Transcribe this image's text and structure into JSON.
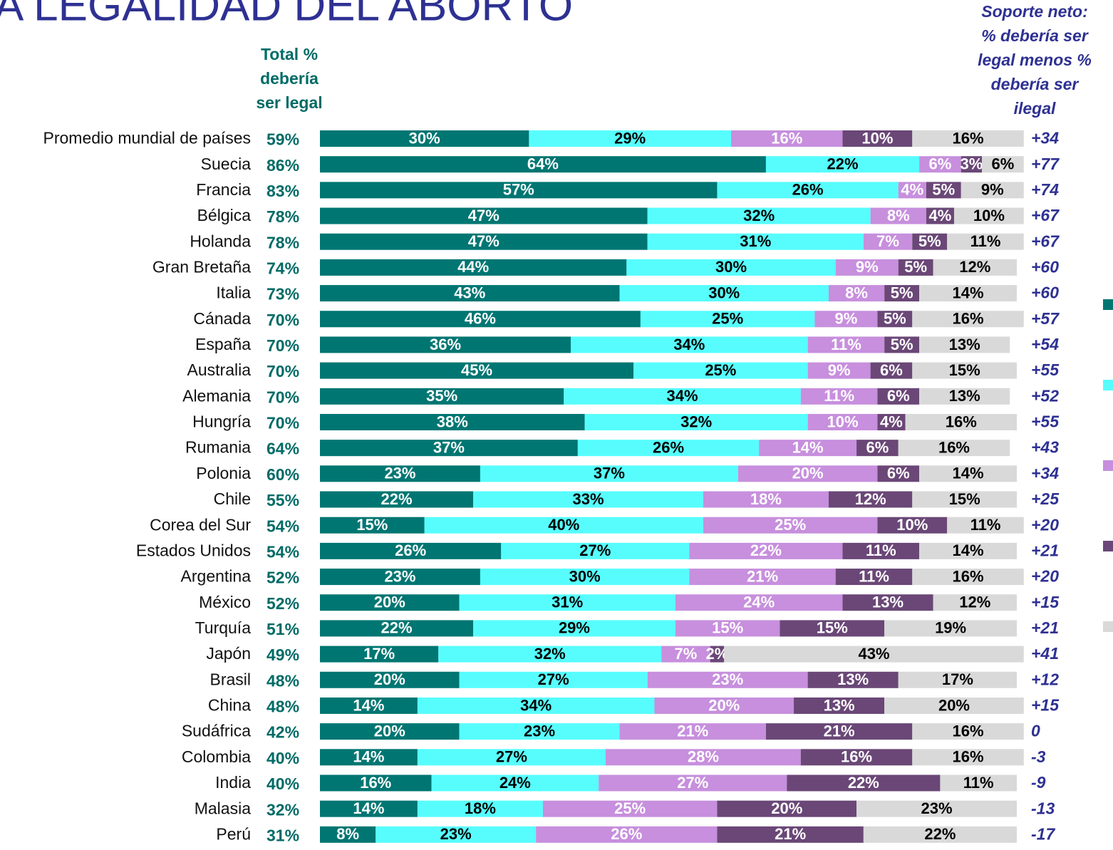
{
  "chart_data": {
    "type": "stacked-bar",
    "title": "A LEGALIDAD DEL ABORTO",
    "total_header": [
      "Total %",
      "debería",
      "ser legal"
    ],
    "net_header": [
      "Soporte neto:",
      "% debería ser",
      "legal menos %",
      "debería ser",
      "ilegal"
    ],
    "categories": [
      "Promedio mundial de países",
      "Suecia",
      "Francia",
      "Bélgica",
      "Holanda",
      "Gran Bretaña",
      "Italia",
      "Cánada",
      "España",
      "Australia",
      "Alemania",
      "Hungría",
      "Rumania",
      "Polonia",
      "Chile",
      "Corea del Sur",
      "Estados Unidos",
      "Argentina",
      "México",
      "Turquía",
      "Japón",
      "Brasil",
      "China",
      "Sudáfrica",
      "Colombia",
      "India",
      "Malasia",
      "Perú"
    ],
    "xlim": [
      0,
      100
    ],
    "totals": {
      "color": "#006b66",
      "values": [
        59,
        86,
        83,
        78,
        78,
        74,
        73,
        70,
        70,
        70,
        70,
        70,
        64,
        60,
        55,
        54,
        54,
        52,
        52,
        51,
        49,
        48,
        48,
        42,
        40,
        40,
        32,
        31
      ],
      "value_labels": [
        "59%",
        "86%",
        "83%",
        "78%",
        "78%",
        "74%",
        "73%",
        "70%",
        "70%",
        "70%",
        "70%",
        "70%",
        "64%",
        "60%",
        "55%",
        "54%",
        "54%",
        "52%",
        "52%",
        "51%",
        "49%",
        "48%",
        "48%",
        "42%",
        "40%",
        "40%",
        "32%",
        "31%"
      ]
    },
    "net": {
      "color": "#2e3192",
      "values": [
        34,
        77,
        74,
        67,
        67,
        60,
        60,
        57,
        54,
        55,
        52,
        55,
        43,
        34,
        25,
        20,
        21,
        20,
        15,
        21,
        41,
        12,
        15,
        0,
        -3,
        -9,
        -13,
        -17
      ],
      "value_labels": [
        "+34",
        "+77",
        "+74",
        "+67",
        "+67",
        "+60",
        "+60",
        "+57",
        "+54",
        "+55",
        "+52",
        "+55",
        "+43",
        "+34",
        "+25",
        "+20",
        "+21",
        "+20",
        "+15",
        "+21",
        "+41",
        "+12",
        "+15",
        "0",
        "-3",
        "-9",
        "-13",
        "-17"
      ]
    },
    "series": [
      {
        "color": "#007672",
        "text_color": "#ffffff",
        "values": [
          30,
          64,
          57,
          47,
          47,
          44,
          43,
          46,
          36,
          45,
          35,
          38,
          37,
          23,
          22,
          15,
          26,
          23,
          20,
          22,
          17,
          20,
          14,
          20,
          14,
          16,
          14,
          8
        ],
        "value_labels": [
          "30%",
          "64%",
          "57%",
          "47%",
          "47%",
          "44%",
          "43%",
          "46%",
          "36%",
          "45%",
          "35%",
          "38%",
          "37%",
          "23%",
          "22%",
          "15%",
          "26%",
          "23%",
          "20%",
          "22%",
          "17%",
          "20%",
          "14%",
          "20%",
          "14%",
          "16%",
          "14%",
          "8%"
        ]
      },
      {
        "color": "#57fdfd",
        "text_color": "#000000",
        "values": [
          29,
          22,
          26,
          32,
          31,
          30,
          30,
          25,
          34,
          25,
          34,
          32,
          26,
          37,
          33,
          40,
          27,
          30,
          31,
          29,
          32,
          27,
          34,
          23,
          27,
          24,
          18,
          23
        ],
        "value_labels": [
          "29%",
          "22%",
          "26%",
          "32%",
          "31%",
          "30%",
          "30%",
          "25%",
          "34%",
          "25%",
          "34%",
          "32%",
          "26%",
          "37%",
          "33%",
          "40%",
          "27%",
          "30%",
          "31%",
          "29%",
          "32%",
          "27%",
          "34%",
          "23%",
          "27%",
          "24%",
          "18%",
          "23%"
        ]
      },
      {
        "color": "#c78fdd",
        "text_color": "#ffffff",
        "values": [
          16,
          6,
          4,
          8,
          7,
          9,
          8,
          9,
          11,
          9,
          11,
          10,
          14,
          20,
          18,
          25,
          22,
          21,
          24,
          15,
          7,
          23,
          20,
          21,
          28,
          27,
          25,
          26
        ],
        "value_labels": [
          "16%",
          "6%",
          "4%",
          "8%",
          "7%",
          "9%",
          "8%",
          "9%",
          "11%",
          "9%",
          "11%",
          "10%",
          "14%",
          "20%",
          "18%",
          "25%",
          "22%",
          "21%",
          "24%",
          "15%",
          "7%",
          "23%",
          "20%",
          "21%",
          "28%",
          "27%",
          "25%",
          "26%"
        ]
      },
      {
        "color": "#6a4777",
        "text_color": "#ffffff",
        "values": [
          10,
          3,
          5,
          4,
          5,
          5,
          5,
          5,
          5,
          6,
          6,
          4,
          6,
          6,
          12,
          10,
          11,
          11,
          13,
          15,
          2,
          13,
          13,
          21,
          16,
          22,
          20,
          21
        ],
        "value_labels": [
          "10%",
          "3%",
          "5%",
          "4%",
          "5%",
          "5%",
          "5%",
          "5%",
          "5%",
          "6%",
          "6%",
          "4%",
          "6%",
          "6%",
          "12%",
          "10%",
          "11%",
          "11%",
          "13%",
          "15%",
          "2%",
          "13%",
          "13%",
          "21%",
          "16%",
          "22%",
          "20%",
          "21%"
        ]
      },
      {
        "color": "#d9d9d9",
        "text_color": "#000000",
        "values": [
          16,
          6,
          9,
          10,
          11,
          12,
          14,
          16,
          13,
          15,
          13,
          16,
          16,
          14,
          15,
          11,
          14,
          16,
          12,
          19,
          43,
          17,
          20,
          16,
          16,
          11,
          23,
          22
        ],
        "value_labels": [
          "16%",
          "6%",
          "9%",
          "10%",
          "11%",
          "12%",
          "14%",
          "16%",
          "13%",
          "15%",
          "13%",
          "16%",
          "16%",
          "14%",
          "15%",
          "11%",
          "14%",
          "16%",
          "12%",
          "19%",
          "43%",
          "17%",
          "20%",
          "16%",
          "16%",
          "11%",
          "23%",
          "22%"
        ]
      }
    ]
  }
}
